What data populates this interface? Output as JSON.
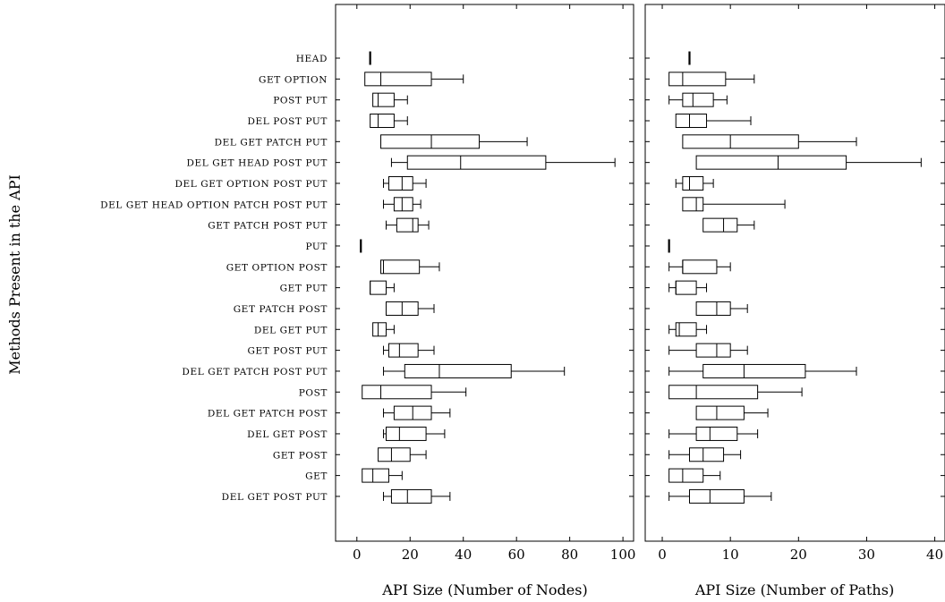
{
  "chart_data": {
    "type": "boxplot",
    "ylabel": "Methods Present in the API",
    "categories": [
      "HEAD",
      "GET OPTION",
      "POST PUT",
      "DEL POST PUT",
      "DEL GET PATCH PUT",
      "DEL GET HEAD POST PUT",
      "DEL GET OPTION POST PUT",
      "DEL GET HEAD OPTION PATCH POST PUT",
      "GET PATCH POST PUT",
      "PUT",
      "GET OPTION POST",
      "GET PUT",
      "GET PATCH POST",
      "DEL GET PUT",
      "GET POST PUT",
      "DEL GET PATCH POST PUT",
      "POST",
      "DEL GET PATCH POST",
      "DEL GET POST",
      "GET POST",
      "GET",
      "DEL GET POST PUT"
    ],
    "panels": [
      {
        "xlabel": "API Size (Number of Nodes)",
        "xlim": [
          -8,
          104
        ],
        "xticks": [
          0,
          20,
          40,
          60,
          80,
          100
        ],
        "boxes": [
          {
            "min": 5,
            "q1": 5,
            "median": 5,
            "q3": 5,
            "max": 5
          },
          {
            "min": 3,
            "q1": 3,
            "median": 9,
            "q3": 28,
            "max": 40
          },
          {
            "min": 6,
            "q1": 6,
            "median": 8,
            "q3": 14,
            "max": 19
          },
          {
            "min": 5,
            "q1": 5,
            "median": 8,
            "q3": 14,
            "max": 19
          },
          {
            "min": 9,
            "q1": 9,
            "median": 28,
            "q3": 46,
            "max": 64
          },
          {
            "min": 13,
            "q1": 19,
            "median": 39,
            "q3": 71,
            "max": 97
          },
          {
            "min": 10,
            "q1": 12,
            "median": 17,
            "q3": 21,
            "max": 26
          },
          {
            "min": 10,
            "q1": 14,
            "median": 17,
            "q3": 21,
            "max": 24
          },
          {
            "min": 11,
            "q1": 15,
            "median": 21,
            "q3": 23,
            "max": 27
          },
          {
            "min": 1.5,
            "q1": 1.5,
            "median": 1.5,
            "q3": 1.5,
            "max": 1.5
          },
          {
            "min": 9,
            "q1": 9,
            "median": 10,
            "q3": 23.5,
            "max": 31
          },
          {
            "min": 5,
            "q1": 5,
            "median": 5,
            "q3": 11,
            "max": 14
          },
          {
            "min": 11,
            "q1": 11,
            "median": 17,
            "q3": 23,
            "max": 29
          },
          {
            "min": 6,
            "q1": 6,
            "median": 8,
            "q3": 11,
            "max": 14
          },
          {
            "min": 10,
            "q1": 12,
            "median": 16,
            "q3": 23,
            "max": 29
          },
          {
            "min": 10,
            "q1": 18,
            "median": 31,
            "q3": 58,
            "max": 78
          },
          {
            "min": 2,
            "q1": 2,
            "median": 9,
            "q3": 28,
            "max": 41
          },
          {
            "min": 10,
            "q1": 14,
            "median": 21,
            "q3": 28,
            "max": 35
          },
          {
            "min": 10,
            "q1": 11,
            "median": 16,
            "q3": 26,
            "max": 33
          },
          {
            "min": 8,
            "q1": 8,
            "median": 13,
            "q3": 20,
            "max": 26
          },
          {
            "min": 2,
            "q1": 2,
            "median": 6,
            "q3": 12,
            "max": 17
          },
          {
            "min": 10,
            "q1": 13,
            "median": 19,
            "q3": 28,
            "max": 35
          }
        ]
      },
      {
        "xlabel": "API Size (Number of Paths)",
        "xlim": [
          -2.5,
          41.5
        ],
        "xticks": [
          0,
          10,
          20,
          30,
          40
        ],
        "boxes": [
          {
            "min": 4,
            "q1": 4,
            "median": 4,
            "q3": 4,
            "max": 4
          },
          {
            "min": 1,
            "q1": 1,
            "median": 3,
            "q3": 9.3,
            "max": 13.5
          },
          {
            "min": 1,
            "q1": 3,
            "median": 4.5,
            "q3": 7.5,
            "max": 9.5
          },
          {
            "min": 2,
            "q1": 2,
            "median": 4,
            "q3": 6.5,
            "max": 13
          },
          {
            "min": 3,
            "q1": 3,
            "median": 10,
            "q3": 20,
            "max": 28.5
          },
          {
            "min": 5,
            "q1": 5,
            "median": 17,
            "q3": 27,
            "max": 38
          },
          {
            "min": 2,
            "q1": 3,
            "median": 4,
            "q3": 6,
            "max": 7.5
          },
          {
            "min": 3,
            "q1": 3,
            "median": 5,
            "q3": 6,
            "max": 18
          },
          {
            "min": 6,
            "q1": 6,
            "median": 9,
            "q3": 11,
            "max": 13.5
          },
          {
            "min": 1,
            "q1": 1,
            "median": 1,
            "q3": 1,
            "max": 1
          },
          {
            "min": 1,
            "q1": 3,
            "median": 3,
            "q3": 8,
            "max": 10
          },
          {
            "min": 1,
            "q1": 2,
            "median": 2,
            "q3": 5,
            "max": 6.5
          },
          {
            "min": 5,
            "q1": 5,
            "median": 8,
            "q3": 10,
            "max": 12.5
          },
          {
            "min": 1,
            "q1": 2,
            "median": 2.5,
            "q3": 5,
            "max": 6.5
          },
          {
            "min": 1,
            "q1": 5,
            "median": 8,
            "q3": 10,
            "max": 12.5
          },
          {
            "min": 1,
            "q1": 6,
            "median": 12,
            "q3": 21,
            "max": 28.5
          },
          {
            "min": 1,
            "q1": 1,
            "median": 5,
            "q3": 14,
            "max": 20.5
          },
          {
            "min": 5,
            "q1": 5,
            "median": 8,
            "q3": 12,
            "max": 15.5
          },
          {
            "min": 1,
            "q1": 5,
            "median": 7,
            "q3": 11,
            "max": 14
          },
          {
            "min": 1,
            "q1": 4,
            "median": 6,
            "q3": 9,
            "max": 11.5
          },
          {
            "min": 1,
            "q1": 1,
            "median": 3,
            "q3": 6,
            "max": 8.5
          },
          {
            "min": 1,
            "q1": 4,
            "median": 7,
            "q3": 12,
            "max": 16
          }
        ]
      }
    ],
    "grid": false,
    "colors": {
      "stroke": "#000000",
      "box_fill": "#ffffff"
    }
  }
}
